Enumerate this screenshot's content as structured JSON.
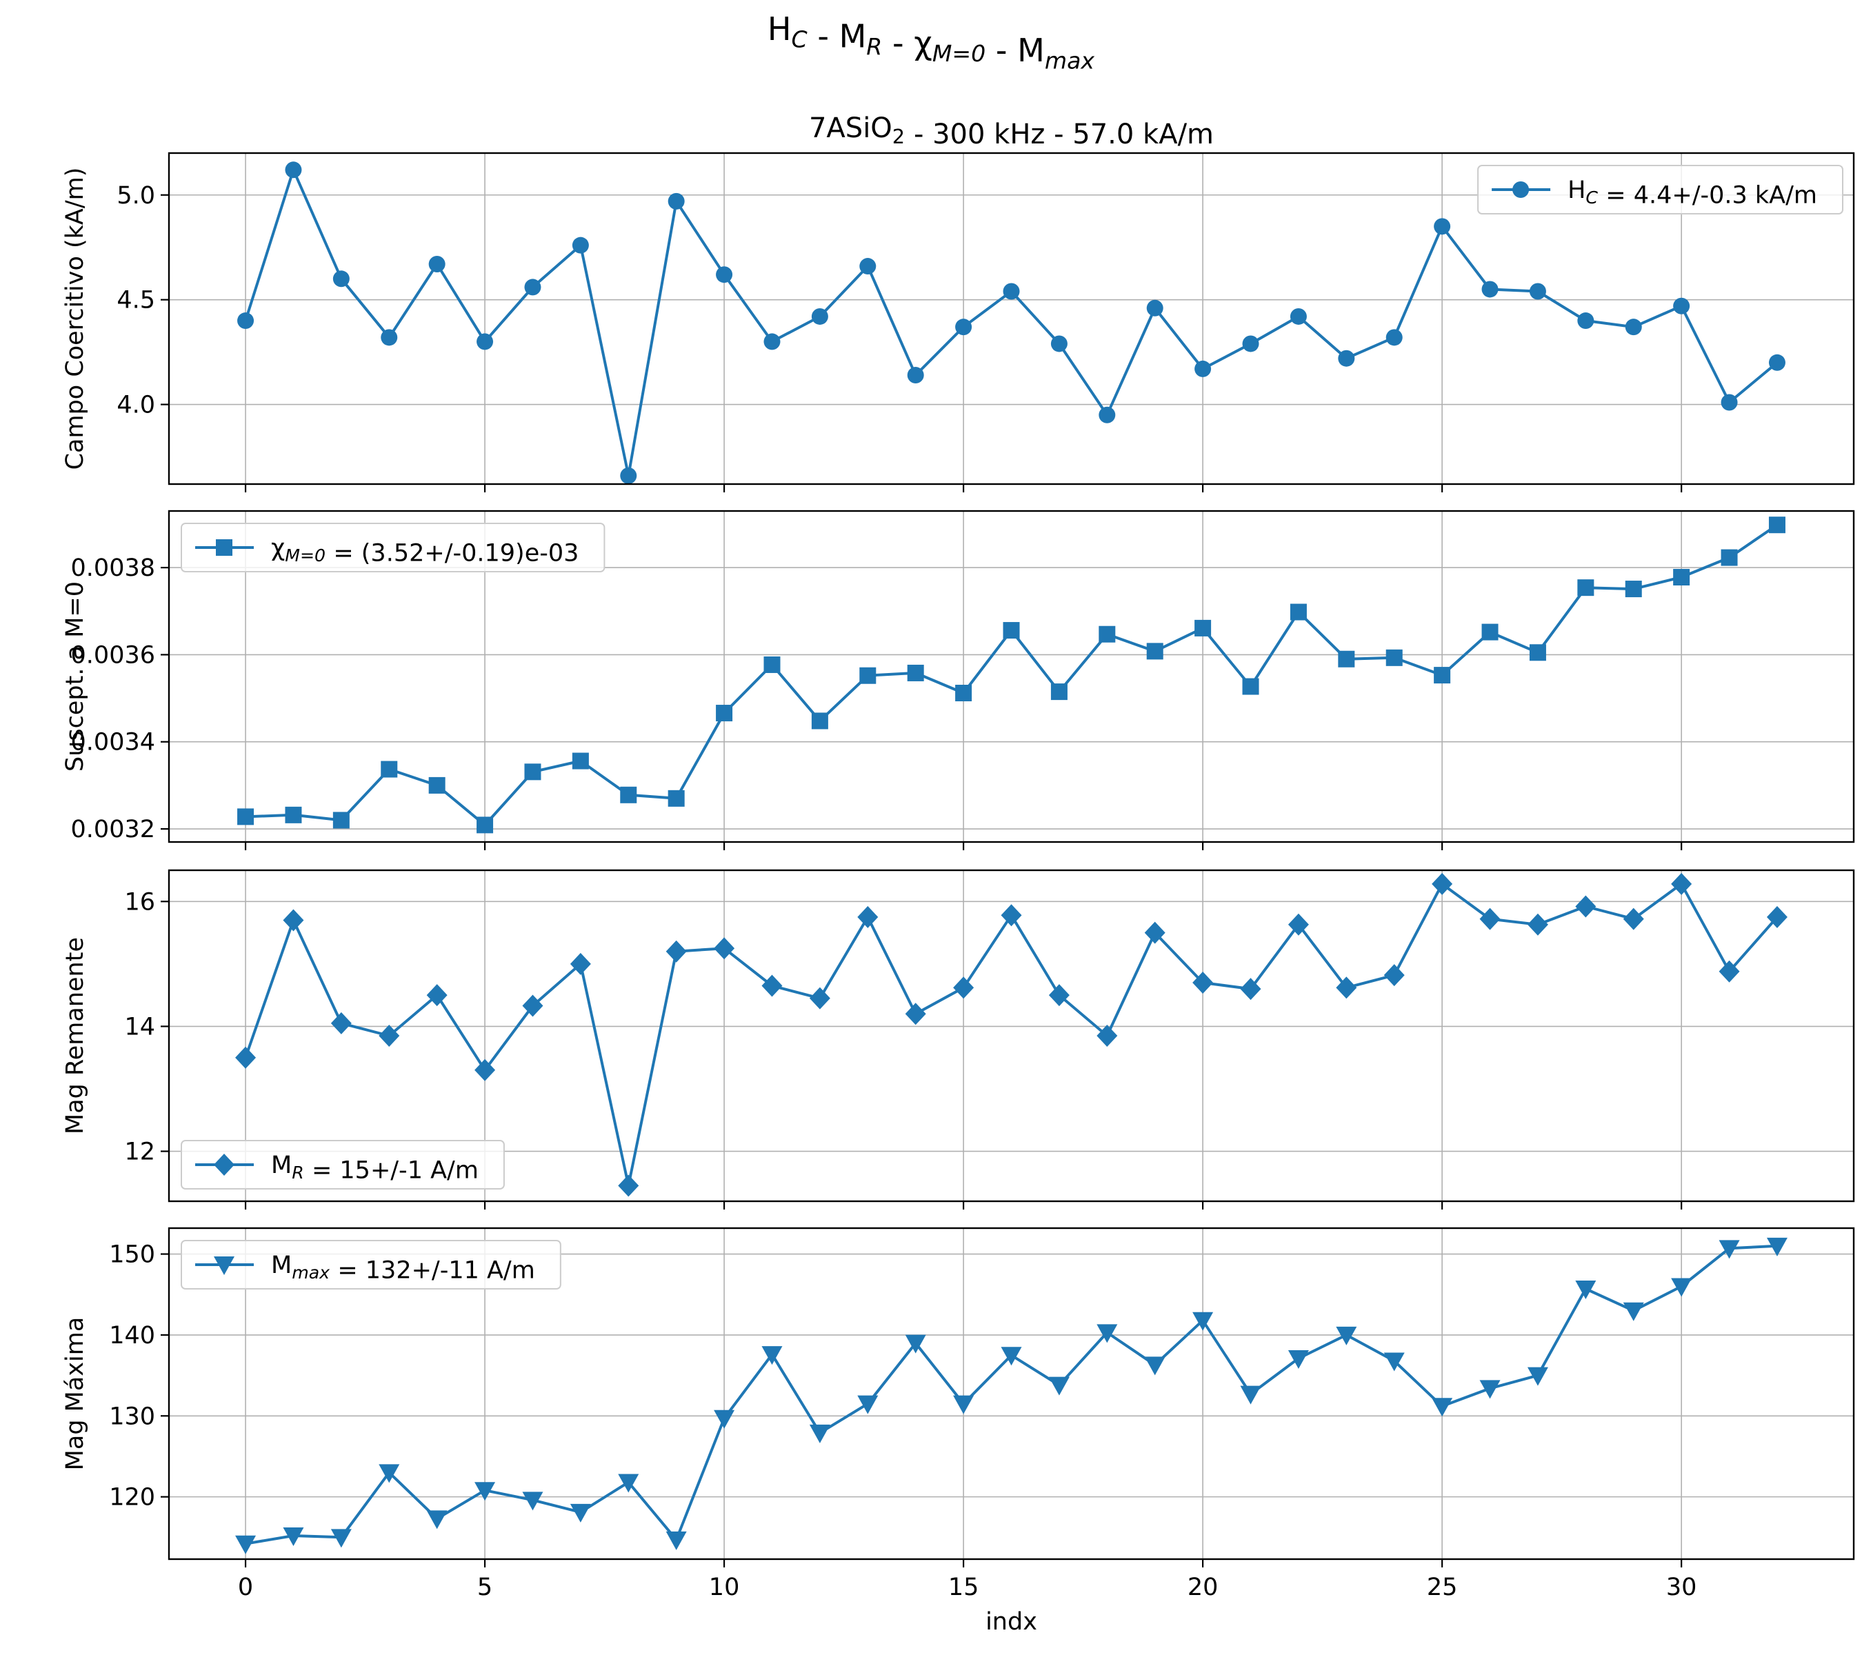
{
  "figure": {
    "suptitle": "H_C - M_R - χ_{M=0} - M_{max}",
    "color": "#1f77b4"
  },
  "chart_data": [
    {
      "type": "line",
      "title": "7ASiO_2 - 300 kHz - 57.0 kA/m",
      "ylabel": "Campo Coercitivo (kA/m)",
      "xlabel": "",
      "marker": "circle",
      "legend": "H_C = 4.4+/-0.3 kA/m",
      "legend_loc": "top-right",
      "grid": true,
      "xlim": [
        -1.6,
        33.6
      ],
      "ylim": [
        3.62,
        5.2
      ],
      "yticks": [
        4.0,
        4.5,
        5.0
      ],
      "ytick_labels": [
        "4.0",
        "4.5",
        "5.0"
      ],
      "x": [
        0,
        1,
        2,
        3,
        4,
        5,
        6,
        7,
        8,
        9,
        10,
        11,
        12,
        13,
        14,
        15,
        16,
        17,
        18,
        19,
        20,
        21,
        22,
        23,
        24,
        25,
        26,
        27,
        28,
        29,
        30,
        31,
        32
      ],
      "y": [
        4.4,
        5.12,
        4.6,
        4.32,
        4.67,
        4.3,
        4.56,
        4.76,
        3.66,
        4.97,
        4.62,
        4.3,
        4.42,
        4.66,
        4.14,
        4.37,
        4.54,
        4.29,
        3.95,
        4.46,
        4.17,
        4.29,
        4.42,
        4.22,
        4.32,
        4.85,
        4.55,
        4.54,
        4.4,
        4.37,
        4.47,
        4.01,
        4.2
      ]
    },
    {
      "type": "line",
      "title": "",
      "ylabel": "Suscept. a M=0",
      "xlabel": "",
      "marker": "square",
      "legend": "χ_{M=0} = (3.52+/-0.19)e-03",
      "legend_loc": "top-left",
      "grid": true,
      "xlim": [
        -1.6,
        33.6
      ],
      "ylim": [
        0.00317,
        0.00393
      ],
      "yticks": [
        0.0032,
        0.0034,
        0.0036,
        0.0038
      ],
      "ytick_labels": [
        "0.0032",
        "0.0034",
        "0.0036",
        "0.0038"
      ],
      "x": [
        0,
        1,
        2,
        3,
        4,
        5,
        6,
        7,
        8,
        9,
        10,
        11,
        12,
        13,
        14,
        15,
        16,
        17,
        18,
        19,
        20,
        21,
        22,
        23,
        24,
        25,
        26,
        27,
        28,
        29,
        30,
        31,
        32
      ],
      "y": [
        0.003228,
        0.003232,
        0.00322,
        0.003337,
        0.0033,
        0.003209,
        0.003331,
        0.003356,
        0.003278,
        0.00327,
        0.003466,
        0.003577,
        0.003448,
        0.003552,
        0.003558,
        0.003512,
        0.003656,
        0.003515,
        0.003647,
        0.003608,
        0.003661,
        0.003527,
        0.003698,
        0.00359,
        0.003593,
        0.003553,
        0.003652,
        0.003605,
        0.003754,
        0.003751,
        0.003778,
        0.003823,
        0.003898
      ]
    },
    {
      "type": "line",
      "title": "",
      "ylabel": "Mag Remanente",
      "xlabel": "",
      "marker": "diamond",
      "legend": "M_R = 15+/-1 A/m",
      "legend_loc": "bottom-left",
      "grid": true,
      "xlim": [
        -1.6,
        33.6
      ],
      "ylim": [
        11.2,
        16.5
      ],
      "yticks": [
        12,
        14,
        16
      ],
      "ytick_labels": [
        "12",
        "14",
        "16"
      ],
      "x": [
        0,
        1,
        2,
        3,
        4,
        5,
        6,
        7,
        8,
        9,
        10,
        11,
        12,
        13,
        14,
        15,
        16,
        17,
        18,
        19,
        20,
        21,
        22,
        23,
        24,
        25,
        26,
        27,
        28,
        29,
        30,
        31,
        32
      ],
      "y": [
        13.5,
        15.7,
        14.05,
        13.85,
        14.5,
        13.3,
        14.33,
        15.0,
        11.45,
        15.2,
        15.25,
        14.65,
        14.45,
        15.75,
        14.2,
        14.62,
        15.78,
        14.5,
        13.85,
        15.5,
        14.7,
        14.6,
        15.63,
        14.62,
        14.82,
        16.28,
        15.72,
        15.63,
        15.92,
        15.72,
        16.28,
        14.88,
        15.75
      ]
    },
    {
      "type": "line",
      "title": "",
      "ylabel": "Mag Máxima",
      "xlabel": "indx",
      "marker": "triangle-down",
      "legend": "M_{max} = 132+/-11 A/m",
      "legend_loc": "top-left",
      "grid": true,
      "xlim": [
        -1.6,
        33.6
      ],
      "ylim": [
        112.3,
        153.2
      ],
      "yticks": [
        120,
        130,
        140,
        150
      ],
      "ytick_labels": [
        "120",
        "130",
        "140",
        "150"
      ],
      "xticks": [
        0,
        5,
        10,
        15,
        20,
        25,
        30
      ],
      "xtick_labels": [
        "0",
        "5",
        "10",
        "15",
        "20",
        "25",
        "30"
      ],
      "x": [
        0,
        1,
        2,
        3,
        4,
        5,
        6,
        7,
        8,
        9,
        10,
        11,
        12,
        13,
        14,
        15,
        16,
        17,
        18,
        19,
        20,
        21,
        22,
        23,
        24,
        25,
        26,
        27,
        28,
        29,
        30,
        31,
        32
      ],
      "y": [
        114.2,
        115.2,
        115.0,
        123.0,
        117.3,
        120.8,
        119.6,
        118.1,
        121.8,
        114.7,
        129.7,
        137.6,
        127.9,
        131.5,
        139.0,
        131.5,
        137.5,
        133.8,
        140.3,
        136.3,
        141.8,
        132.7,
        137.1,
        140.0,
        136.8,
        131.2,
        133.4,
        135.0,
        145.7,
        143.0,
        146.0,
        150.7,
        151.0
      ]
    }
  ]
}
